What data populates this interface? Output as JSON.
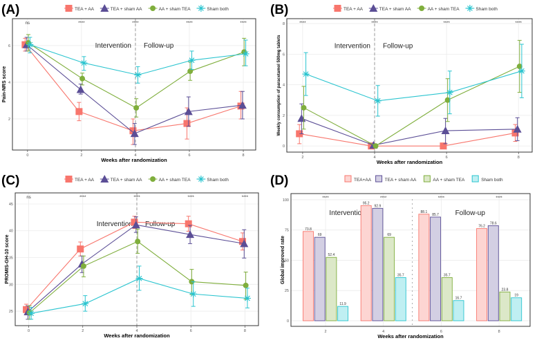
{
  "chart_data": [
    {
      "panel_label": "(A)",
      "type": "line",
      "xlabel": "Weeks after randomization",
      "ylabel": "Pain-NRS score",
      "x": [
        0,
        2,
        4,
        6,
        8
      ],
      "xticks": [
        "0",
        "2",
        "4",
        "6",
        "8"
      ],
      "xlim": [
        -0.56,
        8.46
      ],
      "ylim": [
        0.3,
        7.47
      ],
      "yticks": [
        2,
        4,
        6
      ],
      "ytick_labels": [
        "2",
        "4",
        "6"
      ],
      "grid": true,
      "legend_position": "top",
      "divider_x": 4,
      "annotations": [
        "Intervention",
        "Follow-up"
      ],
      "significance": [
        "ns",
        "****",
        "****",
        "****",
        "****"
      ],
      "series": [
        {
          "name": "TEA + AA",
          "marker": "square",
          "color": "#F8766D",
          "values": [
            6.05,
            2.4,
            1.35,
            1.75,
            2.7
          ],
          "err_low": [
            5.7,
            1.9,
            0.6,
            0.9,
            2.0
          ],
          "err_high": [
            6.4,
            2.9,
            2.0,
            2.6,
            3.5
          ]
        },
        {
          "name": "TEA + sham AA",
          "marker": "triangle",
          "color": "#5B4E96",
          "values": [
            6.05,
            3.6,
            1.2,
            2.4,
            2.75
          ],
          "err_low": [
            5.7,
            3.35,
            0.6,
            1.6,
            2.0
          ],
          "err_high": [
            6.45,
            3.9,
            1.75,
            3.2,
            3.5
          ]
        },
        {
          "name": "AA + sham TEA",
          "marker": "diamond",
          "color": "#7FAE3C",
          "values": [
            6.15,
            4.2,
            2.6,
            4.6,
            5.65
          ],
          "err_low": [
            5.7,
            3.85,
            2.1,
            4.1,
            4.9
          ],
          "err_high": [
            6.6,
            4.5,
            3.1,
            5.1,
            6.4
          ]
        },
        {
          "name": "Sham both",
          "marker": "asterisk",
          "color": "#29C4CF",
          "values": [
            6.05,
            5.05,
            4.4,
            5.2,
            5.55
          ],
          "err_low": [
            5.6,
            4.65,
            3.95,
            4.7,
            4.9
          ],
          "err_high": [
            6.45,
            5.4,
            4.85,
            5.7,
            6.3
          ]
        }
      ]
    },
    {
      "panel_label": "(B)",
      "type": "line",
      "xlabel": "Weeks after randomization",
      "ylabel": "Weekly consumption of paracetamol 500mg tablets",
      "x": [
        2,
        4,
        6,
        8
      ],
      "xticks": [
        "2",
        "4",
        "6",
        "8"
      ],
      "xlim": [
        1.56,
        8.38
      ],
      "ylim": [
        -0.4,
        8.32
      ],
      "yticks": [
        0,
        2,
        4,
        6,
        8
      ],
      "ytick_labels": [
        "0",
        "2",
        "4",
        "6",
        "8"
      ],
      "grid": true,
      "legend_position": "top",
      "divider_x": 4,
      "annotations": [
        "Intervention",
        "Follow-up"
      ],
      "significance": [
        "****",
        "****",
        "****",
        "****"
      ],
      "series": [
        {
          "name": "TEA + AA",
          "marker": "square",
          "color": "#F8766D",
          "values": [
            0.8,
            0.0,
            0.0,
            0.85
          ],
          "err_low": [
            0.15,
            0.0,
            0.0,
            0.3
          ],
          "err_high": [
            1.4,
            0.0,
            0.0,
            1.4
          ]
        },
        {
          "name": "TEA + sham AA",
          "marker": "triangle",
          "color": "#5B4E96",
          "values": [
            1.8,
            0.05,
            1.0,
            1.1
          ],
          "err_low": [
            0.8,
            0.0,
            0.15,
            0.35
          ],
          "err_high": [
            2.75,
            0.1,
            1.8,
            1.85
          ]
        },
        {
          "name": "AA + sham TEA",
          "marker": "diamond",
          "color": "#7FAE3C",
          "values": [
            2.5,
            0.0,
            3.0,
            5.2
          ],
          "err_low": [
            1.1,
            0.0,
            1.6,
            3.5
          ],
          "err_high": [
            3.9,
            0.0,
            4.4,
            6.9
          ]
        },
        {
          "name": "Sham both",
          "marker": "asterisk",
          "color": "#29C4CF",
          "values": [
            4.7,
            2.95,
            3.5,
            4.9
          ],
          "err_low": [
            3.3,
            1.95,
            2.1,
            3.15
          ],
          "err_high": [
            6.1,
            3.95,
            4.9,
            6.65
          ]
        }
      ]
    },
    {
      "panel_label": "(C)",
      "type": "line",
      "xlabel": "Weeks after randomization",
      "ylabel": "PROMIS-GH-10 score",
      "x": [
        0,
        2,
        4,
        6,
        8
      ],
      "xticks": [
        "0",
        "2",
        "4",
        "6",
        "8"
      ],
      "xlim": [
        -0.5,
        8.5
      ],
      "ylim": [
        22.3,
        47.06
      ],
      "yticks": [
        25,
        30,
        35,
        40,
        45
      ],
      "ytick_labels": [
        "25",
        "30",
        "35",
        "40",
        "45"
      ],
      "grid": true,
      "legend_position": "top",
      "divider_x": 4,
      "annotations": [
        "Intervention",
        "Follow-up"
      ],
      "significance": [
        "ns",
        "****",
        "****",
        "****",
        "****"
      ],
      "series": [
        {
          "name": "TEA + AA",
          "marker": "square",
          "color": "#F8766D",
          "values": [
            25.3,
            36.6,
            41.6,
            41.3,
            38.0
          ],
          "err_low": [
            24.3,
            35.3,
            40.4,
            39.9,
            36.4
          ],
          "err_high": [
            26.3,
            37.9,
            42.7,
            42.7,
            39.6
          ]
        },
        {
          "name": "TEA + sham AA",
          "marker": "triangle",
          "color": "#5B4E96",
          "values": [
            24.9,
            33.8,
            41.1,
            39.3,
            37.6
          ],
          "err_low": [
            23.5,
            32.2,
            39.7,
            37.6,
            34.9
          ],
          "err_high": [
            26.0,
            35.3,
            42.6,
            41.0,
            40.2
          ]
        },
        {
          "name": "AA + sham TEA",
          "marker": "diamond",
          "color": "#7FAE3C",
          "values": [
            24.7,
            33.4,
            38.0,
            30.5,
            29.8
          ],
          "err_low": [
            23.5,
            31.4,
            35.8,
            28.1,
            27.2
          ],
          "err_high": [
            26.0,
            35.3,
            40.3,
            32.8,
            32.3
          ]
        },
        {
          "name": "Sham both",
          "marker": "asterisk",
          "color": "#29C4CF",
          "values": [
            24.6,
            26.4,
            31.1,
            28.2,
            27.4
          ],
          "err_low": [
            23.5,
            25.0,
            28.9,
            25.9,
            25.6
          ],
          "err_high": [
            25.7,
            27.9,
            33.4,
            30.5,
            29.3
          ]
        }
      ]
    },
    {
      "panel_label": "(D)",
      "type": "bar",
      "xlabel": "Weeks after randomization",
      "ylabel": "Global improved rate",
      "categories": [
        "2",
        "4",
        "6",
        "8"
      ],
      "ylim": [
        -4.6,
        105.1
      ],
      "yticks": [
        0,
        25,
        50,
        75,
        100
      ],
      "ytick_labels": [
        "0",
        "25",
        "50",
        "75",
        "100"
      ],
      "grid": true,
      "legend_position": "top",
      "annotations": [
        "Intervention",
        "Follow-up"
      ],
      "significance": [
        "****",
        "****",
        "****",
        "****"
      ],
      "series": [
        {
          "name": "TEA+AA",
          "color": "#F8766D",
          "fill": "#FDD5D2",
          "values": [
            73.8,
            95.2,
            88.1,
            76.2
          ],
          "labels": [
            "73.8",
            "95.2",
            "88.1",
            "76.2"
          ]
        },
        {
          "name": "TEA + sham AA",
          "color": "#5B4E96",
          "fill": "#D3CFE3",
          "values": [
            69,
            92.9,
            85.7,
            78.6
          ],
          "labels": [
            "69",
            "92.9",
            "85.7",
            "78.6"
          ]
        },
        {
          "name": "AA + sham TEA",
          "color": "#7FAE3C",
          "fill": "#DCE8C8",
          "values": [
            52.4,
            69,
            35.7,
            23.8
          ],
          "labels": [
            "52.4",
            "69",
            "35.7",
            "23.8"
          ]
        },
        {
          "name": "Sham both",
          "color": "#29C4CF",
          "fill": "#BFEFF2",
          "values": [
            11.9,
            35.7,
            16.7,
            19
          ],
          "labels": [
            "11.9",
            "35.7",
            "16.7",
            "19"
          ]
        }
      ]
    }
  ]
}
